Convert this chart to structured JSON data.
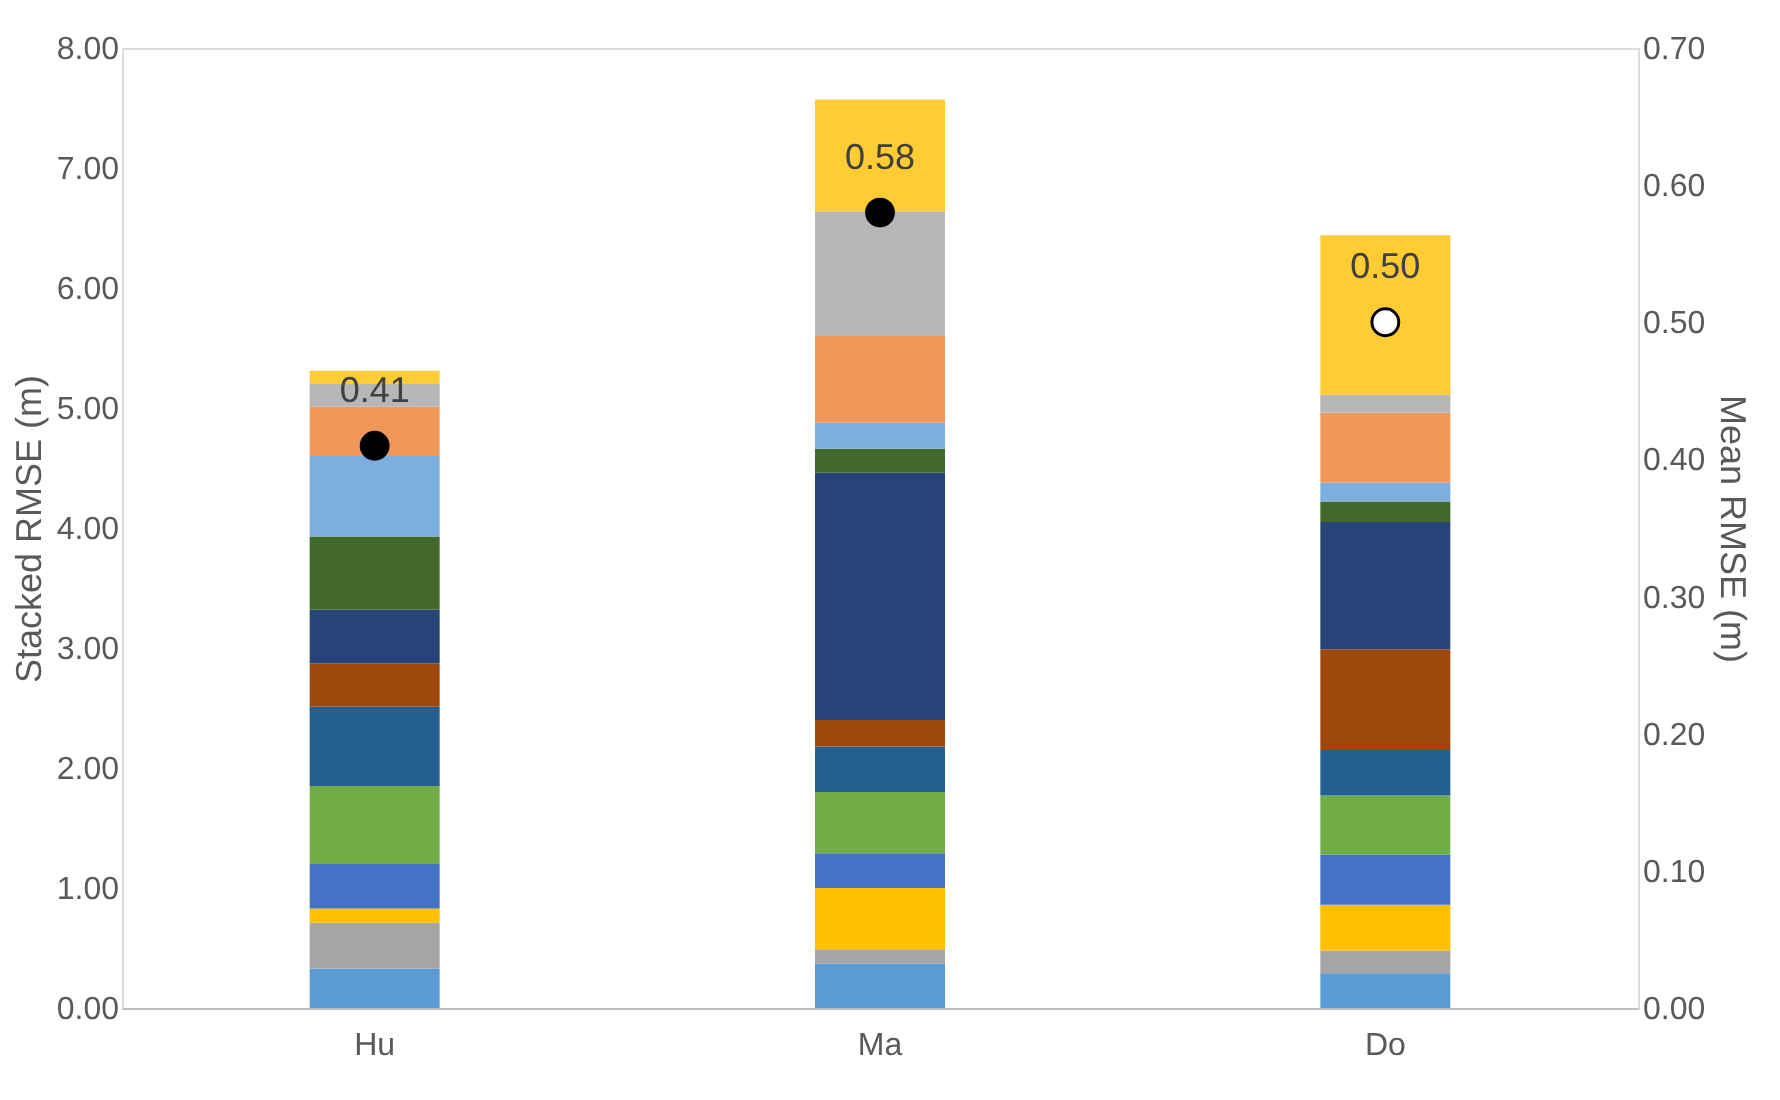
{
  "chart_data": {
    "type": "bar",
    "stacked": true,
    "categories": [
      "Hu",
      "Ma",
      "Do"
    ],
    "ylabel": "Stacked RMSE (m)",
    "y2label": "Mean RMSE (m)",
    "ylim": [
      0,
      8
    ],
    "yticks": [
      {
        "value": 0,
        "label": "0.00"
      },
      {
        "value": 1,
        "label": "1.00"
      },
      {
        "value": 2,
        "label": "2.00"
      },
      {
        "value": 3,
        "label": "3.00"
      },
      {
        "value": 4,
        "label": "4.00"
      },
      {
        "value": 5,
        "label": "5.00"
      },
      {
        "value": 6,
        "label": "6.00"
      },
      {
        "value": 7,
        "label": "7.00"
      },
      {
        "value": 8,
        "label": "8.00"
      }
    ],
    "y2lim": [
      0,
      0.7
    ],
    "y2ticks": [
      {
        "value": 0,
        "label": "0.00"
      },
      {
        "value": 0.1,
        "label": "0.10"
      },
      {
        "value": 0.2,
        "label": "0.20"
      },
      {
        "value": 0.3,
        "label": "0.30"
      },
      {
        "value": 0.4,
        "label": "0.40"
      },
      {
        "value": 0.5,
        "label": "0.50"
      },
      {
        "value": 0.6,
        "label": "0.60"
      },
      {
        "value": 0.7,
        "label": "0.70"
      }
    ],
    "grid": false,
    "legend": false,
    "series": [
      {
        "color": "#5b9bd5",
        "values": [
          0.33,
          0.37,
          0.29
        ]
      },
      {
        "color": "#a5a5a5",
        "values": [
          0.38,
          0.12,
          0.19
        ]
      },
      {
        "color": "#ffc000",
        "values": [
          0.12,
          0.51,
          0.38
        ]
      },
      {
        "color": "#4472c4",
        "values": [
          0.37,
          0.29,
          0.42
        ]
      },
      {
        "color": "#70ad47",
        "values": [
          0.65,
          0.51,
          0.49
        ]
      },
      {
        "color": "#255e91",
        "values": [
          0.66,
          0.38,
          0.38
        ]
      },
      {
        "color": "#9e480e",
        "values": [
          0.36,
          0.22,
          0.84
        ]
      },
      {
        "color": "#264478",
        "values": [
          0.45,
          2.06,
          1.06
        ]
      },
      {
        "color": "#43682b",
        "values": [
          0.61,
          0.2,
          0.17
        ]
      },
      {
        "color": "#7cafdd",
        "values": [
          0.67,
          0.22,
          0.16
        ]
      },
      {
        "color": "#f1975a",
        "values": [
          0.41,
          0.72,
          0.58
        ]
      },
      {
        "color": "#b7b7b7",
        "values": [
          0.19,
          1.04,
          0.15
        ]
      },
      {
        "color": "#ffcd33",
        "values": [
          0.11,
          0.93,
          1.33
        ]
      },
      {
        "type": "scatter",
        "axis": "y2",
        "marker": "circle",
        "colors": [
          "#000000",
          "#000000",
          "#ffffff"
        ],
        "values": [
          0.41,
          0.58,
          0.5
        ],
        "value_labels": [
          "0.41",
          "0.58",
          "0.50"
        ]
      }
    ]
  }
}
